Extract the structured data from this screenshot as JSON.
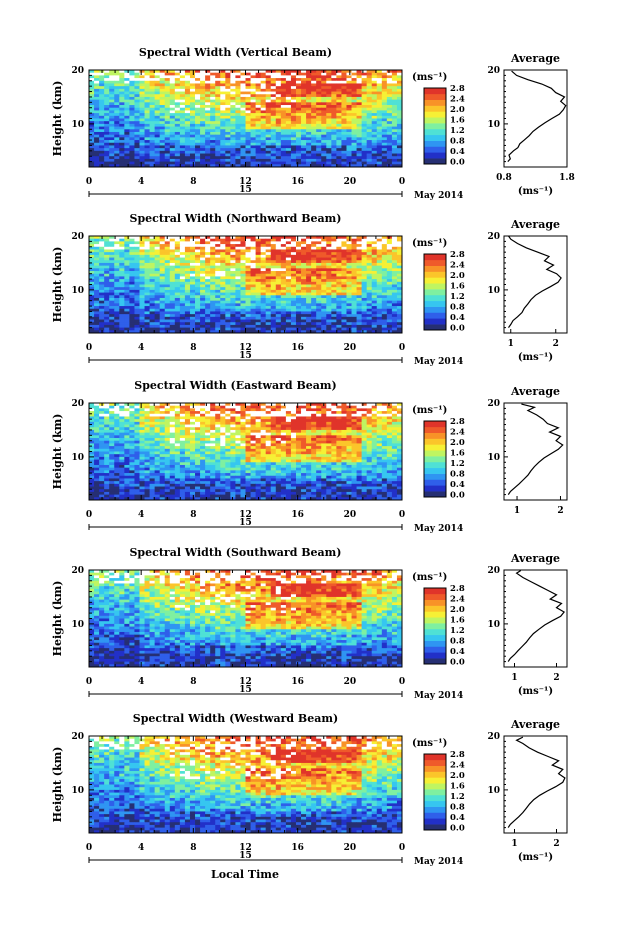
{
  "chart_data": {
    "type": "heatmap",
    "xlabel": "Local Time",
    "date_label": "May 2014",
    "day_label": "15",
    "x_ticks": [
      "0",
      "4",
      "8",
      "12",
      "16",
      "20",
      "0"
    ],
    "x_range": [
      0,
      24
    ],
    "ylabel": "Height (km)",
    "y_ticks": [
      "10",
      "20"
    ],
    "y_range": [
      2,
      20
    ],
    "colorbar": {
      "unit": "(ms⁻¹)",
      "ticks": [
        "2.8",
        "2.4",
        "2.0",
        "1.6",
        "1.2",
        "0.8",
        "0.4",
        "0.0"
      ],
      "range": [
        0,
        2.9
      ],
      "colors": [
        "#262f73",
        "#2230c8",
        "#2f5fea",
        "#2f95f2",
        "#36c6f0",
        "#4fe1d5",
        "#7ff0a0",
        "#bff561",
        "#f6f035",
        "#fbc52a",
        "#f89227",
        "#ef5a2a",
        "#e0342a"
      ]
    },
    "panels": [
      {
        "title": "Spectral Width (Vertical Beam)",
        "avg_title": "Average",
        "avg_xticks": [
          "0.8",
          "1.8"
        ],
        "avg_xrange": [
          0.8,
          1.8
        ],
        "avg_unit": "(ms⁻¹)",
        "avg_profile": [
          [
            0.86,
            3
          ],
          [
            0.9,
            3.5
          ],
          [
            0.88,
            4.2
          ],
          [
            0.95,
            5.0
          ],
          [
            1.02,
            5.6
          ],
          [
            1.05,
            6.3
          ],
          [
            1.12,
            7.0
          ],
          [
            1.2,
            7.8
          ],
          [
            1.26,
            8.6
          ],
          [
            1.35,
            9.4
          ],
          [
            1.45,
            10.2
          ],
          [
            1.56,
            11.0
          ],
          [
            1.68,
            11.8
          ],
          [
            1.74,
            12.6
          ],
          [
            1.78,
            13.4
          ],
          [
            1.7,
            14.2
          ],
          [
            1.76,
            15.0
          ],
          [
            1.62,
            15.8
          ],
          [
            1.55,
            16.6
          ],
          [
            1.4,
            17.4
          ],
          [
            1.18,
            18.2
          ],
          [
            1.0,
            19.0
          ],
          [
            0.92,
            19.8
          ]
        ]
      },
      {
        "title": "Spectral Width (Northward Beam)",
        "avg_title": "Average",
        "avg_xticks": [
          "1",
          "2"
        ],
        "avg_xrange": [
          0.85,
          2.25
        ],
        "avg_unit": "(ms⁻¹)",
        "avg_profile": [
          [
            0.95,
            3
          ],
          [
            1.0,
            3.6
          ],
          [
            1.05,
            4.3
          ],
          [
            1.15,
            5.0
          ],
          [
            1.25,
            5.8
          ],
          [
            1.3,
            6.6
          ],
          [
            1.38,
            7.4
          ],
          [
            1.45,
            8.2
          ],
          [
            1.55,
            9.0
          ],
          [
            1.7,
            9.8
          ],
          [
            1.88,
            10.6
          ],
          [
            2.05,
            11.4
          ],
          [
            2.12,
            12.2
          ],
          [
            2.02,
            13.0
          ],
          [
            1.8,
            13.8
          ],
          [
            1.95,
            14.6
          ],
          [
            1.75,
            15.4
          ],
          [
            1.85,
            16.2
          ],
          [
            1.6,
            17.0
          ],
          [
            1.35,
            17.8
          ],
          [
            1.15,
            18.6
          ],
          [
            1.0,
            19.4
          ],
          [
            0.95,
            20
          ]
        ]
      },
      {
        "title": "Spectral Width (Eastward Beam)",
        "avg_title": "Average",
        "avg_xticks": [
          "1",
          "2"
        ],
        "avg_xrange": [
          0.7,
          2.15
        ],
        "avg_unit": "",
        "avg_profile": [
          [
            0.8,
            3
          ],
          [
            0.85,
            3.6
          ],
          [
            0.95,
            4.3
          ],
          [
            1.05,
            5.0
          ],
          [
            1.15,
            5.8
          ],
          [
            1.25,
            6.6
          ],
          [
            1.32,
            7.4
          ],
          [
            1.4,
            8.2
          ],
          [
            1.5,
            9.0
          ],
          [
            1.62,
            9.8
          ],
          [
            1.78,
            10.6
          ],
          [
            1.95,
            11.4
          ],
          [
            2.05,
            12.2
          ],
          [
            1.9,
            13.0
          ],
          [
            2.0,
            13.8
          ],
          [
            1.75,
            14.6
          ],
          [
            1.95,
            15.4
          ],
          [
            1.7,
            16.2
          ],
          [
            1.6,
            17.0
          ],
          [
            1.45,
            17.8
          ],
          [
            1.25,
            18.6
          ],
          [
            1.4,
            19.2
          ],
          [
            1.1,
            19.8
          ]
        ]
      },
      {
        "title": "Spectral Width (Southward Beam)",
        "avg_title": "Average",
        "avg_xticks": [
          "1",
          "2"
        ],
        "avg_xrange": [
          0.75,
          2.25
        ],
        "avg_unit": "(ms⁻¹)",
        "avg_profile": [
          [
            0.85,
            3
          ],
          [
            0.9,
            3.6
          ],
          [
            1.0,
            4.3
          ],
          [
            1.08,
            5.0
          ],
          [
            1.18,
            5.8
          ],
          [
            1.28,
            6.6
          ],
          [
            1.36,
            7.4
          ],
          [
            1.45,
            8.2
          ],
          [
            1.58,
            9.0
          ],
          [
            1.72,
            9.8
          ],
          [
            1.9,
            10.6
          ],
          [
            2.1,
            11.4
          ],
          [
            2.18,
            12.2
          ],
          [
            2.0,
            13.0
          ],
          [
            2.12,
            13.8
          ],
          [
            1.85,
            14.6
          ],
          [
            2.0,
            15.4
          ],
          [
            1.8,
            16.2
          ],
          [
            1.6,
            17.0
          ],
          [
            1.4,
            17.8
          ],
          [
            1.2,
            18.6
          ],
          [
            1.05,
            19.4
          ],
          [
            1.15,
            19.9
          ]
        ]
      },
      {
        "title": "Spectral Width (Westward Beam)",
        "avg_title": "Average",
        "avg_xticks": [
          "1",
          "2"
        ],
        "avg_xrange": [
          0.75,
          2.25
        ],
        "avg_unit": "(ms⁻¹)",
        "avg_profile": [
          [
            0.85,
            3
          ],
          [
            0.9,
            3.6
          ],
          [
            1.0,
            4.3
          ],
          [
            1.1,
            5.0
          ],
          [
            1.2,
            5.8
          ],
          [
            1.28,
            6.6
          ],
          [
            1.36,
            7.4
          ],
          [
            1.46,
            8.2
          ],
          [
            1.6,
            9.0
          ],
          [
            1.78,
            9.8
          ],
          [
            1.98,
            10.6
          ],
          [
            2.15,
            11.4
          ],
          [
            2.2,
            12.2
          ],
          [
            2.05,
            13.0
          ],
          [
            2.15,
            13.8
          ],
          [
            1.9,
            14.6
          ],
          [
            2.05,
            15.4
          ],
          [
            1.8,
            16.2
          ],
          [
            1.55,
            17.0
          ],
          [
            1.35,
            17.8
          ],
          [
            1.2,
            18.6
          ],
          [
            1.05,
            19.2
          ],
          [
            1.2,
            19.8
          ]
        ]
      }
    ]
  }
}
